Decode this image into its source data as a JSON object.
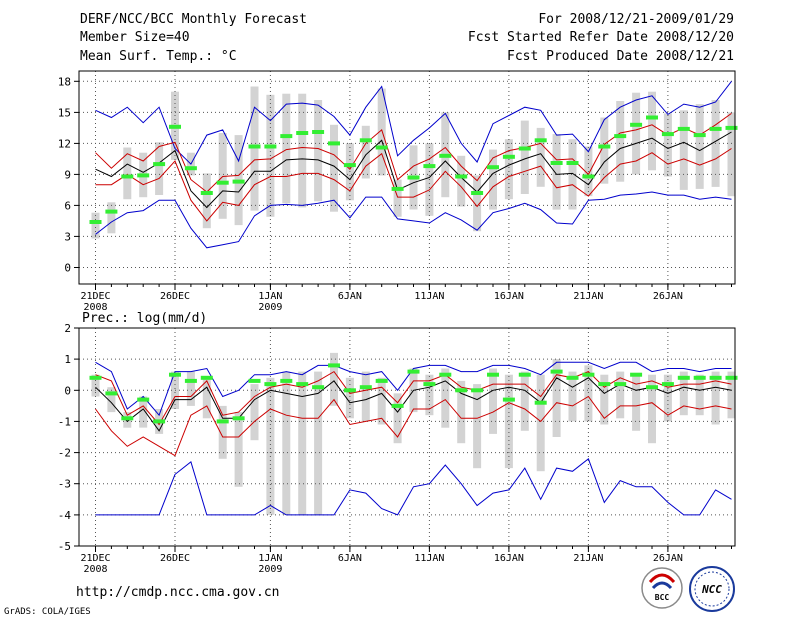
{
  "header": {
    "title": "DERF/NCC/BCC Monthly Forecast",
    "member_size": "Member Size=40",
    "variable": "Mean Surf. Temp.: °C",
    "period": "For 2008/12/21-2009/01/29",
    "started": "Fcst Started Refer Date 2008/12/20",
    "produced": "Fcst Produced Date 2008/12/21"
  },
  "footer": {
    "url": "http://cmdp.ncc.cma.gov.cn",
    "credit": "GrADS: COLA/IGES",
    "logo_bcc": "BCC",
    "logo_ncc": "NCC"
  },
  "colors": {
    "spread": "#d3d3d3",
    "mean": "#000000",
    "std": "#cc0000",
    "extreme": "#0000cc",
    "median": "#33ee33",
    "grid": "#555555"
  },
  "chart_data": [
    {
      "type": "line",
      "title": "Mean Surf. Temp.: °C",
      "ylim": [
        -1.6,
        19
      ],
      "yticks": [
        0,
        3,
        6,
        9,
        12,
        15,
        18
      ],
      "xtick_labels": [
        {
          "day": 0,
          "line1": "21DEC",
          "line2": "2008"
        },
        {
          "day": 5,
          "line1": "26DEC",
          "line2": ""
        },
        {
          "day": 11,
          "line1": "1JAN",
          "line2": "2009"
        },
        {
          "day": 16,
          "line1": "6JAN",
          "line2": ""
        },
        {
          "day": 21,
          "line1": "11JAN",
          "line2": ""
        },
        {
          "day": 26,
          "line1": "16JAN",
          "line2": ""
        },
        {
          "day": 31,
          "line1": "21JAN",
          "line2": ""
        },
        {
          "day": 36,
          "line1": "26JAN",
          "line2": ""
        }
      ],
      "series": [
        {
          "name": "max",
          "values": [
            3.2,
            4.4,
            5.3,
            5.5,
            6.5,
            6.5,
            3.8,
            1.9,
            2.2,
            2.5,
            5.0,
            6.0,
            6.1,
            6.0,
            6.2,
            6.5,
            4.8,
            6.8,
            6.8,
            4.7,
            4.5,
            4.3,
            5.3,
            4.6,
            3.6,
            5.3,
            5.7,
            6.2,
            5.6,
            4.3,
            4.2,
            6.5,
            6.6,
            7.0,
            7.1,
            7.3,
            7.0,
            7.0,
            6.6,
            6.8,
            6.6
          ]
        },
        {
          "name": "q_low",
          "values": [
            8.0,
            8.0,
            9.0,
            8.0,
            8.6,
            10.3,
            6.5,
            4.5,
            6.3,
            6.0,
            8.0,
            8.8,
            8.8,
            9.1,
            9.1,
            8.5,
            7.4,
            9.8,
            11.0,
            6.8,
            6.8,
            7.5,
            9.3,
            7.8,
            5.9,
            7.8,
            8.8,
            9.3,
            9.8,
            7.7,
            8.0,
            6.9,
            8.7,
            10.0,
            10.3,
            11.1,
            10.0,
            10.5,
            9.9,
            10.5,
            11.5
          ]
        },
        {
          "name": "mean",
          "values": [
            9.5,
            8.8,
            10.0,
            9.2,
            10.1,
            11.3,
            7.4,
            5.8,
            7.4,
            7.3,
            9.3,
            9.3,
            10.4,
            10.5,
            10.4,
            9.8,
            8.5,
            10.9,
            12.3,
            7.5,
            8.2,
            8.7,
            10.3,
            8.7,
            7.3,
            9.1,
            9.9,
            10.5,
            11.0,
            9.0,
            9.1,
            8.0,
            10.2,
            11.5,
            12.0,
            12.5,
            11.5,
            12.1,
            11.3,
            12.2,
            13.1
          ]
        },
        {
          "name": "q_high",
          "values": [
            11.1,
            9.6,
            11.0,
            10.3,
            11.7,
            12.1,
            8.5,
            7.3,
            8.8,
            8.9,
            10.4,
            10.5,
            11.4,
            11.6,
            11.5,
            10.9,
            9.5,
            12.0,
            13.3,
            8.5,
            9.8,
            10.5,
            11.6,
            9.8,
            8.4,
            10.6,
            11.3,
            11.6,
            12.0,
            10.4,
            10.5,
            9.0,
            11.9,
            13.0,
            13.3,
            13.8,
            12.8,
            13.5,
            12.8,
            13.8,
            14.9
          ]
        },
        {
          "name": "min",
          "values": [
            15.2,
            14.5,
            15.5,
            14.0,
            15.5,
            11.5,
            10.0,
            12.8,
            13.3,
            10.3,
            15.5,
            14.2,
            15.8,
            15.9,
            15.7,
            14.6,
            12.8,
            15.5,
            17.5,
            10.8,
            12.3,
            13.5,
            14.9,
            12.0,
            10.2,
            13.9,
            14.7,
            15.5,
            15.2,
            12.8,
            12.9,
            11.2,
            14.3,
            15.5,
            16.2,
            16.6,
            14.8,
            15.8,
            15.5,
            16.0,
            18.0
          ]
        },
        {
          "name": "median",
          "values": [
            4.4,
            5.4,
            8.8,
            8.9,
            10.0,
            13.6,
            9.6,
            7.2,
            8.2,
            8.3,
            11.7,
            11.7,
            12.7,
            13.0,
            13.1,
            12.0,
            9.9,
            12.3,
            11.6,
            7.6,
            8.7,
            9.8,
            10.8,
            8.8,
            7.2,
            9.7,
            10.7,
            11.5,
            12.3,
            10.1,
            10.1,
            8.8,
            11.7,
            12.7,
            13.8,
            14.5,
            12.9,
            13.4,
            12.8,
            13.4,
            13.5
          ]
        },
        {
          "name": "spread_low",
          "values": [
            2.8,
            3.3,
            6.6,
            6.8,
            7.0,
            10.4,
            8.9,
            3.8,
            4.7,
            4.1,
            5.5,
            4.9,
            6.2,
            5.8,
            6.4,
            5.4,
            6.5,
            8.6,
            8.9,
            4.9,
            5.6,
            5.0,
            6.8,
            5.9,
            3.5,
            5.6,
            6.6,
            7.1,
            7.8,
            5.6,
            5.6,
            6.9,
            8.1,
            8.3,
            9.0,
            9.4,
            8.8,
            7.5,
            7.6,
            7.8,
            6.9
          ]
        },
        {
          "name": "spread_high",
          "values": [
            5.3,
            6.3,
            11.6,
            11.1,
            12.1,
            17.0,
            11.1,
            9.1,
            13.0,
            12.8,
            17.5,
            16.7,
            16.8,
            16.8,
            16.2,
            13.8,
            12.0,
            13.7,
            17.3,
            8.5,
            11.8,
            12.0,
            15.0,
            10.8,
            8.9,
            11.4,
            12.4,
            14.2,
            13.5,
            12.9,
            12.4,
            11.7,
            14.5,
            16.1,
            16.9,
            17.0,
            14.9,
            15.2,
            15.8,
            16.2,
            15.0
          ]
        }
      ]
    },
    {
      "type": "line",
      "title": "Prec.: log(mm/d)",
      "ylim": [
        -5,
        2
      ],
      "yticks": [
        -5,
        -4,
        -3,
        -2,
        -1,
        0,
        1,
        2
      ],
      "xtick_labels": [
        {
          "day": 0,
          "line1": "21DEC",
          "line2": "2008"
        },
        {
          "day": 5,
          "line1": "26DEC",
          "line2": ""
        },
        {
          "day": 11,
          "line1": "1JAN",
          "line2": "2009"
        },
        {
          "day": 16,
          "line1": "6JAN",
          "line2": ""
        },
        {
          "day": 21,
          "line1": "11JAN",
          "line2": ""
        },
        {
          "day": 26,
          "line1": "16JAN",
          "line2": ""
        },
        {
          "day": 31,
          "line1": "21JAN",
          "line2": ""
        },
        {
          "day": 36,
          "line1": "26JAN",
          "line2": ""
        }
      ],
      "series": [
        {
          "name": "max",
          "values": [
            -4.0,
            -4.0,
            -4.0,
            -4.0,
            -4.0,
            -2.7,
            -2.3,
            -4.0,
            -4.0,
            -4.0,
            -4.0,
            -3.7,
            -4.0,
            -4.0,
            -4.0,
            -4.0,
            -3.2,
            -3.3,
            -3.8,
            -4.0,
            -3.1,
            -3.0,
            -2.4,
            -3.0,
            -3.7,
            -3.3,
            -3.2,
            -2.5,
            -3.5,
            -2.5,
            -2.6,
            -2.2,
            -3.6,
            -2.9,
            -3.1,
            -3.1,
            -3.6,
            -4.0,
            -4.0,
            -3.2,
            -3.5
          ]
        },
        {
          "name": "q_low",
          "values": [
            -0.6,
            -1.3,
            -1.8,
            -1.5,
            -1.8,
            -2.1,
            -0.8,
            -0.5,
            -1.5,
            -1.5,
            -1.0,
            -0.6,
            -0.8,
            -0.9,
            -0.9,
            -0.3,
            -1.1,
            -1.0,
            -0.9,
            -1.5,
            -0.6,
            -0.6,
            -0.3,
            -0.9,
            -0.9,
            -0.7,
            -0.4,
            -0.6,
            -1.0,
            -0.4,
            -0.5,
            -0.2,
            -0.9,
            -0.5,
            -0.5,
            -0.4,
            -0.8,
            -0.5,
            -0.6,
            -0.5,
            -0.6
          ]
        },
        {
          "name": "mean",
          "values": [
            0.1,
            -0.4,
            -1.0,
            -0.6,
            -1.3,
            -0.3,
            -0.3,
            0.1,
            -0.9,
            -0.9,
            -0.3,
            0.0,
            -0.1,
            -0.2,
            -0.1,
            0.3,
            -0.4,
            -0.3,
            -0.1,
            -0.7,
            0.0,
            0.1,
            0.3,
            -0.1,
            -0.3,
            0.0,
            0.1,
            0.0,
            -0.4,
            0.4,
            0.1,
            0.4,
            -0.1,
            0.2,
            0.0,
            0.1,
            -0.1,
            0.1,
            0.0,
            0.1,
            0.0
          ]
        },
        {
          "name": "q_high",
          "values": [
            0.5,
            0.3,
            -0.8,
            -0.5,
            -1.1,
            -0.2,
            -0.2,
            0.3,
            -0.8,
            -0.7,
            -0.2,
            0.1,
            0.2,
            0.1,
            0.3,
            0.6,
            -0.1,
            0.0,
            0.1,
            -0.4,
            0.3,
            0.3,
            0.5,
            0.1,
            0.0,
            0.2,
            0.2,
            0.2,
            -0.2,
            0.5,
            0.4,
            0.6,
            0.1,
            0.4,
            0.2,
            0.3,
            0.1,
            0.2,
            0.2,
            0.3,
            0.2
          ]
        },
        {
          "name": "min",
          "values": [
            0.9,
            0.6,
            -0.6,
            -0.2,
            -0.8,
            0.6,
            0.6,
            0.7,
            -0.2,
            0.0,
            0.5,
            0.5,
            0.6,
            0.5,
            0.8,
            0.8,
            0.6,
            0.5,
            0.6,
            0.0,
            0.7,
            0.8,
            0.8,
            0.6,
            0.6,
            0.8,
            0.8,
            0.7,
            0.5,
            0.9,
            0.9,
            0.9,
            0.7,
            0.9,
            0.9,
            0.6,
            0.7,
            0.7,
            0.6,
            0.7,
            0.7
          ]
        },
        {
          "name": "median",
          "values": [
            0.4,
            -0.1,
            -0.9,
            -0.3,
            -1.0,
            0.5,
            0.3,
            0.4,
            -1.0,
            -0.9,
            0.3,
            0.2,
            0.3,
            0.2,
            0.1,
            0.8,
            0.0,
            0.1,
            0.3,
            -0.5,
            0.6,
            0.2,
            0.5,
            0.0,
            0.0,
            0.5,
            -0.3,
            0.5,
            -0.4,
            0.6,
            0.4,
            0.5,
            0.2,
            0.2,
            0.5,
            0.1,
            0.2,
            0.4,
            0.4,
            0.4,
            0.4
          ]
        },
        {
          "name": "spread_low",
          "values": [
            -0.2,
            -0.7,
            -1.2,
            -1.2,
            -1.4,
            -0.6,
            -0.5,
            -0.9,
            -2.2,
            -3.1,
            -1.6,
            -4.0,
            -4.0,
            -4.0,
            -4.0,
            -0.5,
            -0.9,
            -1.0,
            -1.1,
            -1.7,
            -0.7,
            -0.8,
            -1.2,
            -1.7,
            -2.5,
            -1.4,
            -2.5,
            -1.3,
            -2.6,
            -1.5,
            -1.0,
            -1.0,
            -1.1,
            -0.9,
            -1.3,
            -1.7,
            -1.0,
            -0.8,
            -0.8,
            -1.1,
            -0.9
          ]
        },
        {
          "name": "spread_high",
          "values": [
            0.5,
            0.1,
            -0.7,
            -0.2,
            -0.6,
            0.6,
            0.6,
            0.4,
            -0.5,
            -0.7,
            0.2,
            0.4,
            0.6,
            0.6,
            0.6,
            1.2,
            0.4,
            0.6,
            0.4,
            -0.1,
            0.7,
            0.5,
            0.7,
            0.3,
            0.2,
            0.7,
            0.5,
            0.6,
            0.5,
            1.0,
            0.6,
            0.8,
            0.5,
            0.6,
            0.5,
            0.5,
            0.5,
            0.6,
            0.5,
            0.6,
            0.6
          ]
        }
      ]
    }
  ]
}
